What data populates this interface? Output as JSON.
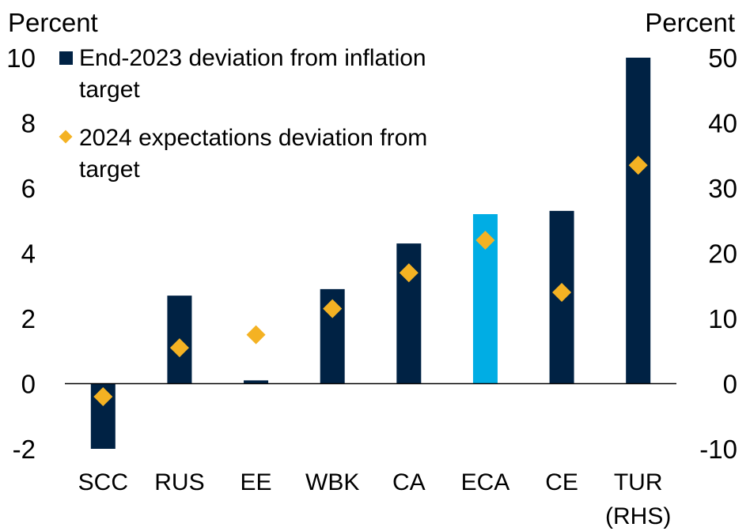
{
  "chart_data": {
    "type": "bar",
    "left_axis_title": "Percent",
    "right_axis_title": "Percent",
    "left_ticks": [
      "10",
      "8",
      "6",
      "4",
      "2",
      "0",
      "-2"
    ],
    "right_ticks": [
      "50",
      "40",
      "30",
      "20",
      "10",
      "0",
      "-10"
    ],
    "ylim_left": [
      -2,
      10
    ],
    "ylim_right": [
      -10,
      50
    ],
    "legend": {
      "bar_label_line1": "End-2023 deviation from inflation",
      "bar_label_line2": "target",
      "marker_label_line1": "2024 expectations deviation from",
      "marker_label_line2": "target"
    },
    "categories": [
      {
        "label": "SCC",
        "label2": "",
        "bar": -2.0,
        "marker": -0.4,
        "axis": "left",
        "color": "#002244"
      },
      {
        "label": "RUS",
        "label2": "",
        "bar": 2.7,
        "marker": 1.1,
        "axis": "left",
        "color": "#002244"
      },
      {
        "label": "EE",
        "label2": "",
        "bar": 0.1,
        "marker": 1.5,
        "axis": "left",
        "color": "#002244"
      },
      {
        "label": "WBK",
        "label2": "",
        "bar": 2.9,
        "marker": 2.3,
        "axis": "left",
        "color": "#002244"
      },
      {
        "label": "CA",
        "label2": "",
        "bar": 4.3,
        "marker": 3.4,
        "axis": "left",
        "color": "#002244"
      },
      {
        "label": "ECA",
        "label2": "",
        "bar": 5.2,
        "marker": 4.4,
        "axis": "left",
        "color": "#00ADE4"
      },
      {
        "label": "CE",
        "label2": "",
        "bar": 5.3,
        "marker": 2.8,
        "axis": "left",
        "color": "#002244"
      },
      {
        "label": "TUR",
        "label2": "(RHS)",
        "bar": 50.0,
        "marker": 33.5,
        "axis": "right",
        "color": "#002244"
      }
    ],
    "marker_color": "#F4B223",
    "grid": false
  }
}
